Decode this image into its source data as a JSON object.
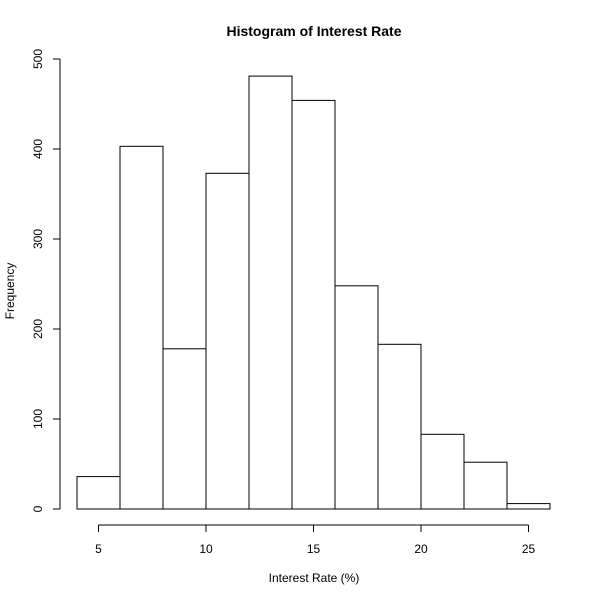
{
  "chart_data": {
    "type": "bar",
    "title": "Histogram of Interest Rate",
    "xlabel": "Interest Rate (%)",
    "ylabel": "Frequency",
    "bins": [
      {
        "start": 4,
        "end": 6,
        "count": 36
      },
      {
        "start": 6,
        "end": 8,
        "count": 403
      },
      {
        "start": 8,
        "end": 10,
        "count": 178
      },
      {
        "start": 10,
        "end": 12,
        "count": 373
      },
      {
        "start": 12,
        "end": 14,
        "count": 481
      },
      {
        "start": 14,
        "end": 16,
        "count": 454
      },
      {
        "start": 16,
        "end": 18,
        "count": 248
      },
      {
        "start": 18,
        "end": 20,
        "count": 183
      },
      {
        "start": 20,
        "end": 22,
        "count": 83
      },
      {
        "start": 22,
        "end": 24,
        "count": 52
      },
      {
        "start": 24,
        "end": 26,
        "count": 6
      }
    ],
    "xlim": [
      4,
      26
    ],
    "ylim": [
      0,
      500
    ],
    "xticks": [
      5,
      10,
      15,
      20,
      25
    ],
    "yticks": [
      0,
      100,
      200,
      300,
      400,
      500
    ],
    "bar_fill": "#ffffff",
    "bar_stroke": "#000000",
    "grid": false,
    "legend": "none"
  }
}
